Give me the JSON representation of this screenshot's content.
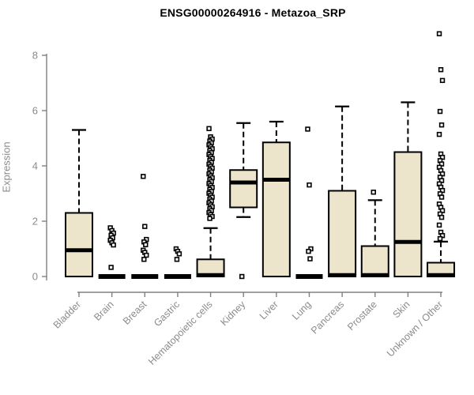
{
  "chart_data": {
    "type": "boxplot",
    "title": "ENSG00000264916 - Metazoa_SRP",
    "ylabel": "Expression",
    "xlabel": "",
    "yticks": [
      0,
      2,
      4,
      6,
      8
    ],
    "ylim": [
      0,
      8.8
    ],
    "grid": false,
    "legend": "none",
    "colors": {
      "box_fill": "#ece5cb",
      "box_stroke": "#000000",
      "axis": "#808080",
      "tick_label": "#8b8b8b",
      "title": "#000000"
    },
    "categories": [
      "Bladder",
      "Brain",
      "Breast",
      "Gastric",
      "Hematopoietic cells",
      "Kidney",
      "Liver",
      "Lung",
      "Pancreas",
      "Prostate",
      "Skin",
      "Unknown / Other"
    ],
    "boxes": [
      {
        "category": "Bladder",
        "low": 0,
        "q1": 0,
        "median": 0.95,
        "q3": 2.3,
        "high": 5.3,
        "outliers": []
      },
      {
        "category": "Brain",
        "low": 0,
        "q1": 0,
        "median": 0,
        "q3": 0,
        "high": 0,
        "outliers": [
          1.76,
          1.66,
          1.57,
          1.49,
          1.4,
          1.31,
          1.22,
          1.14,
          0.33
        ]
      },
      {
        "category": "Breast",
        "low": 0,
        "q1": 0,
        "median": 0,
        "q3": 0,
        "high": 0,
        "outliers": [
          3.62,
          1.81,
          1.34,
          1.25,
          1.15,
          0.95,
          0.87,
          0.77,
          0.62
        ]
      },
      {
        "category": "Gastric",
        "low": 0,
        "q1": 0,
        "median": 0,
        "q3": 0,
        "high": 0,
        "outliers": [
          1.0,
          0.91,
          0.82,
          0.62
        ]
      },
      {
        "category": "Hematopoietic cells",
        "low": 0,
        "q1": 0,
        "median": 0.05,
        "q3": 0.62,
        "high": 1.75,
        "outliers": [
          5.35,
          5.05,
          4.97,
          4.9,
          4.83,
          4.76,
          4.69,
          4.62,
          4.55,
          4.48,
          4.41,
          4.34,
          4.27,
          4.2,
          4.13,
          4.06,
          3.99,
          3.92,
          3.85,
          3.78,
          3.71,
          3.64,
          3.57,
          3.5,
          3.43,
          3.36,
          3.29,
          3.22,
          3.15,
          3.08,
          3.01,
          2.94,
          2.87,
          2.8,
          2.73,
          2.66,
          2.59,
          2.52,
          2.45,
          2.38,
          2.31,
          2.24,
          2.17,
          2.1
        ]
      },
      {
        "category": "Kidney",
        "low": 2.15,
        "q1": 2.5,
        "median": 3.4,
        "q3": 3.85,
        "high": 5.55,
        "outliers": [
          0.0
        ]
      },
      {
        "category": "Liver",
        "low": 0,
        "q1": 0,
        "median": 3.5,
        "q3": 4.85,
        "high": 5.6,
        "outliers": []
      },
      {
        "category": "Lung",
        "low": 0,
        "q1": 0,
        "median": 0,
        "q3": 0,
        "high": 0,
        "outliers": [
          5.33,
          3.31,
          1.0,
          0.91,
          0.64
        ]
      },
      {
        "category": "Pancreas",
        "low": 0,
        "q1": 0,
        "median": 0.05,
        "q3": 3.1,
        "high": 6.15,
        "outliers": []
      },
      {
        "category": "Prostate",
        "low": 0,
        "q1": 0,
        "median": 0.05,
        "q3": 1.1,
        "high": 2.76,
        "outliers": [
          3.05
        ]
      },
      {
        "category": "Skin",
        "low": 0,
        "q1": 0,
        "median": 1.25,
        "q3": 4.5,
        "high": 6.3,
        "outliers": []
      },
      {
        "category": "Unknown / Other",
        "low": 0,
        "q1": 0,
        "median": 0.05,
        "q3": 0.5,
        "high": 1.26,
        "outliers": [
          8.78,
          7.48,
          7.09,
          5.97,
          5.48,
          5.14,
          4.43,
          4.31,
          4.19,
          4.07,
          3.95,
          3.83,
          3.71,
          3.59,
          3.47,
          3.35,
          3.23,
          3.11,
          2.99,
          2.87,
          2.62,
          2.5,
          2.38,
          2.26,
          2.14,
          1.86,
          1.6,
          1.48,
          1.37
        ]
      }
    ]
  }
}
